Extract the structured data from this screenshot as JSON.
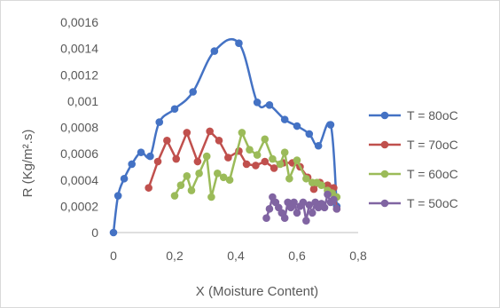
{
  "chart_data": {
    "type": "scatter",
    "xlabel": "X (Moisture Content)",
    "ylabel": "R (Kg/m².s)",
    "xlim": [
      0,
      0.8
    ],
    "ylim": [
      0,
      0.0016
    ],
    "x_ticks": [
      "0",
      "0,2",
      "0,4",
      "0,6",
      "0,8"
    ],
    "y_ticks": [
      "0",
      "0,0002",
      "0,0004",
      "0,0006",
      "0,0008",
      "0,001",
      "0,0012",
      "0,0014",
      "0,0016"
    ],
    "grid": false,
    "legend_position": "right",
    "series": [
      {
        "name": "T = 80oC",
        "color": "#4472c4",
        "smooth": true,
        "points": [
          [
            0,
            0
          ],
          [
            0.015,
            0.00028
          ],
          [
            0.035,
            0.00041
          ],
          [
            0.06,
            0.00052
          ],
          [
            0.09,
            0.00061
          ],
          [
            0.12,
            0.00058
          ],
          [
            0.15,
            0.00084
          ],
          [
            0.2,
            0.00094
          ],
          [
            0.26,
            0.00107
          ],
          [
            0.33,
            0.00138
          ],
          [
            0.41,
            0.00144
          ],
          [
            0.47,
            0.00099
          ],
          [
            0.51,
            0.00097
          ],
          [
            0.56,
            0.00086
          ],
          [
            0.6,
            0.00081
          ],
          [
            0.64,
            0.00075
          ],
          [
            0.67,
            0.00066
          ],
          [
            0.71,
            0.00082
          ],
          [
            0.73,
            0.0002
          ]
        ]
      },
      {
        "name": "T = 70oC",
        "color": "#c0504d",
        "smooth": false,
        "points": [
          [
            0.115,
            0.00034
          ],
          [
            0.145,
            0.00054
          ],
          [
            0.175,
            0.0007
          ],
          [
            0.205,
            0.00056
          ],
          [
            0.24,
            0.00076
          ],
          [
            0.275,
            0.00054
          ],
          [
            0.315,
            0.00077
          ],
          [
            0.345,
            0.0007
          ],
          [
            0.375,
            0.00057
          ],
          [
            0.41,
            0.00062
          ],
          [
            0.435,
            0.00052
          ],
          [
            0.465,
            0.00051
          ],
          [
            0.495,
            0.00054
          ],
          [
            0.525,
            0.00049
          ],
          [
            0.555,
            0.00053
          ],
          [
            0.585,
            0.00053
          ],
          [
            0.61,
            0.0005
          ],
          [
            0.635,
            0.00042
          ],
          [
            0.655,
            0.00033
          ],
          [
            0.675,
            0.00038
          ],
          [
            0.7,
            0.00036
          ],
          [
            0.72,
            0.00034
          ],
          [
            0.73,
            0.00018
          ]
        ]
      },
      {
        "name": "T = 60oC",
        "color": "#9bbb59",
        "smooth": false,
        "points": [
          [
            0.2,
            0.00028
          ],
          [
            0.22,
            0.00036
          ],
          [
            0.24,
            0.00043
          ],
          [
            0.255,
            0.00032
          ],
          [
            0.28,
            0.00045
          ],
          [
            0.305,
            0.00058
          ],
          [
            0.32,
            0.00027
          ],
          [
            0.34,
            0.00045
          ],
          [
            0.36,
            0.00042
          ],
          [
            0.38,
            0.0004
          ],
          [
            0.42,
            0.00076
          ],
          [
            0.445,
            0.00063
          ],
          [
            0.47,
            0.00059
          ],
          [
            0.495,
            0.00071
          ],
          [
            0.52,
            0.00056
          ],
          [
            0.545,
            0.00052
          ],
          [
            0.56,
            0.00061
          ],
          [
            0.575,
            0.00041
          ],
          [
            0.6,
            0.00055
          ],
          [
            0.63,
            0.00041
          ],
          [
            0.65,
            0.00038
          ],
          [
            0.665,
            0.00038
          ],
          [
            0.68,
            0.00036
          ],
          [
            0.7,
            0.00032
          ],
          [
            0.715,
            0.0003
          ],
          [
            0.73,
            0.00027
          ]
        ]
      },
      {
        "name": "T = 50oC",
        "color": "#8064a2",
        "smooth": false,
        "points": [
          [
            0.5,
            0.00011
          ],
          [
            0.51,
            0.00018
          ],
          [
            0.52,
            0.00027
          ],
          [
            0.53,
            0.00023
          ],
          [
            0.54,
            0.00019
          ],
          [
            0.55,
            0.00015
          ],
          [
            0.56,
            0.00011
          ],
          [
            0.57,
            0.00023
          ],
          [
            0.58,
            0.00019
          ],
          [
            0.59,
            0.00023
          ],
          [
            0.6,
            0.00015
          ],
          [
            0.61,
            0.0002
          ],
          [
            0.62,
            0.00023
          ],
          [
            0.63,
            9e-05
          ],
          [
            0.64,
            0.00021
          ],
          [
            0.65,
            0.00015
          ],
          [
            0.66,
            0.00023
          ],
          [
            0.67,
            0.00019
          ],
          [
            0.68,
            0.00022
          ],
          [
            0.69,
            0.00019
          ],
          [
            0.7,
            0.00029
          ],
          [
            0.71,
            0.00023
          ],
          [
            0.72,
            0.00025
          ],
          [
            0.73,
            0.00018
          ]
        ]
      }
    ]
  }
}
